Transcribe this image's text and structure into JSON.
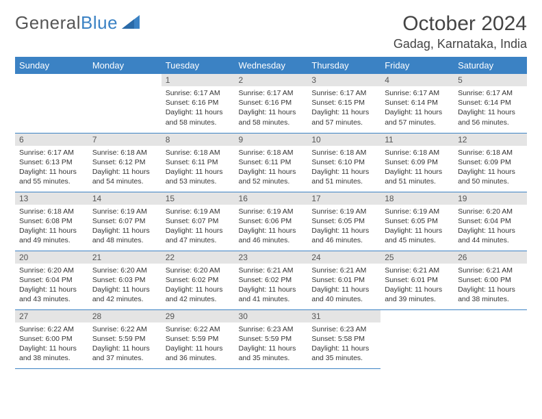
{
  "logo": {
    "text1": "General",
    "text2": "Blue"
  },
  "title": "October 2024",
  "location": "Gadag, Karnataka, India",
  "colors": {
    "header_bg": "#3b82c4",
    "header_text": "#ffffff",
    "daynum_bg": "#e4e4e4",
    "cell_border": "#3b82c4",
    "body_text": "#333333",
    "logo_gray": "#555555",
    "logo_blue": "#3b82c4",
    "background": "#ffffff"
  },
  "typography": {
    "title_fontsize": 30,
    "location_fontsize": 18,
    "header_fontsize": 13,
    "daynum_fontsize": 12,
    "cell_fontsize": 10.5,
    "font_family": "Arial"
  },
  "day_headers": [
    "Sunday",
    "Monday",
    "Tuesday",
    "Wednesday",
    "Thursday",
    "Friday",
    "Saturday"
  ],
  "weeks": [
    [
      null,
      null,
      {
        "n": "1",
        "sr": "Sunrise: 6:17 AM",
        "ss": "Sunset: 6:16 PM",
        "dl": "Daylight: 11 hours and 58 minutes."
      },
      {
        "n": "2",
        "sr": "Sunrise: 6:17 AM",
        "ss": "Sunset: 6:16 PM",
        "dl": "Daylight: 11 hours and 58 minutes."
      },
      {
        "n": "3",
        "sr": "Sunrise: 6:17 AM",
        "ss": "Sunset: 6:15 PM",
        "dl": "Daylight: 11 hours and 57 minutes."
      },
      {
        "n": "4",
        "sr": "Sunrise: 6:17 AM",
        "ss": "Sunset: 6:14 PM",
        "dl": "Daylight: 11 hours and 57 minutes."
      },
      {
        "n": "5",
        "sr": "Sunrise: 6:17 AM",
        "ss": "Sunset: 6:14 PM",
        "dl": "Daylight: 11 hours and 56 minutes."
      }
    ],
    [
      {
        "n": "6",
        "sr": "Sunrise: 6:17 AM",
        "ss": "Sunset: 6:13 PM",
        "dl": "Daylight: 11 hours and 55 minutes."
      },
      {
        "n": "7",
        "sr": "Sunrise: 6:18 AM",
        "ss": "Sunset: 6:12 PM",
        "dl": "Daylight: 11 hours and 54 minutes."
      },
      {
        "n": "8",
        "sr": "Sunrise: 6:18 AM",
        "ss": "Sunset: 6:11 PM",
        "dl": "Daylight: 11 hours and 53 minutes."
      },
      {
        "n": "9",
        "sr": "Sunrise: 6:18 AM",
        "ss": "Sunset: 6:11 PM",
        "dl": "Daylight: 11 hours and 52 minutes."
      },
      {
        "n": "10",
        "sr": "Sunrise: 6:18 AM",
        "ss": "Sunset: 6:10 PM",
        "dl": "Daylight: 11 hours and 51 minutes."
      },
      {
        "n": "11",
        "sr": "Sunrise: 6:18 AM",
        "ss": "Sunset: 6:09 PM",
        "dl": "Daylight: 11 hours and 51 minutes."
      },
      {
        "n": "12",
        "sr": "Sunrise: 6:18 AM",
        "ss": "Sunset: 6:09 PM",
        "dl": "Daylight: 11 hours and 50 minutes."
      }
    ],
    [
      {
        "n": "13",
        "sr": "Sunrise: 6:18 AM",
        "ss": "Sunset: 6:08 PM",
        "dl": "Daylight: 11 hours and 49 minutes."
      },
      {
        "n": "14",
        "sr": "Sunrise: 6:19 AM",
        "ss": "Sunset: 6:07 PM",
        "dl": "Daylight: 11 hours and 48 minutes."
      },
      {
        "n": "15",
        "sr": "Sunrise: 6:19 AM",
        "ss": "Sunset: 6:07 PM",
        "dl": "Daylight: 11 hours and 47 minutes."
      },
      {
        "n": "16",
        "sr": "Sunrise: 6:19 AM",
        "ss": "Sunset: 6:06 PM",
        "dl": "Daylight: 11 hours and 46 minutes."
      },
      {
        "n": "17",
        "sr": "Sunrise: 6:19 AM",
        "ss": "Sunset: 6:05 PM",
        "dl": "Daylight: 11 hours and 46 minutes."
      },
      {
        "n": "18",
        "sr": "Sunrise: 6:19 AM",
        "ss": "Sunset: 6:05 PM",
        "dl": "Daylight: 11 hours and 45 minutes."
      },
      {
        "n": "19",
        "sr": "Sunrise: 6:20 AM",
        "ss": "Sunset: 6:04 PM",
        "dl": "Daylight: 11 hours and 44 minutes."
      }
    ],
    [
      {
        "n": "20",
        "sr": "Sunrise: 6:20 AM",
        "ss": "Sunset: 6:04 PM",
        "dl": "Daylight: 11 hours and 43 minutes."
      },
      {
        "n": "21",
        "sr": "Sunrise: 6:20 AM",
        "ss": "Sunset: 6:03 PM",
        "dl": "Daylight: 11 hours and 42 minutes."
      },
      {
        "n": "22",
        "sr": "Sunrise: 6:20 AM",
        "ss": "Sunset: 6:02 PM",
        "dl": "Daylight: 11 hours and 42 minutes."
      },
      {
        "n": "23",
        "sr": "Sunrise: 6:21 AM",
        "ss": "Sunset: 6:02 PM",
        "dl": "Daylight: 11 hours and 41 minutes."
      },
      {
        "n": "24",
        "sr": "Sunrise: 6:21 AM",
        "ss": "Sunset: 6:01 PM",
        "dl": "Daylight: 11 hours and 40 minutes."
      },
      {
        "n": "25",
        "sr": "Sunrise: 6:21 AM",
        "ss": "Sunset: 6:01 PM",
        "dl": "Daylight: 11 hours and 39 minutes."
      },
      {
        "n": "26",
        "sr": "Sunrise: 6:21 AM",
        "ss": "Sunset: 6:00 PM",
        "dl": "Daylight: 11 hours and 38 minutes."
      }
    ],
    [
      {
        "n": "27",
        "sr": "Sunrise: 6:22 AM",
        "ss": "Sunset: 6:00 PM",
        "dl": "Daylight: 11 hours and 38 minutes."
      },
      {
        "n": "28",
        "sr": "Sunrise: 6:22 AM",
        "ss": "Sunset: 5:59 PM",
        "dl": "Daylight: 11 hours and 37 minutes."
      },
      {
        "n": "29",
        "sr": "Sunrise: 6:22 AM",
        "ss": "Sunset: 5:59 PM",
        "dl": "Daylight: 11 hours and 36 minutes."
      },
      {
        "n": "30",
        "sr": "Sunrise: 6:23 AM",
        "ss": "Sunset: 5:59 PM",
        "dl": "Daylight: 11 hours and 35 minutes."
      },
      {
        "n": "31",
        "sr": "Sunrise: 6:23 AM",
        "ss": "Sunset: 5:58 PM",
        "dl": "Daylight: 11 hours and 35 minutes."
      },
      null,
      null
    ]
  ]
}
